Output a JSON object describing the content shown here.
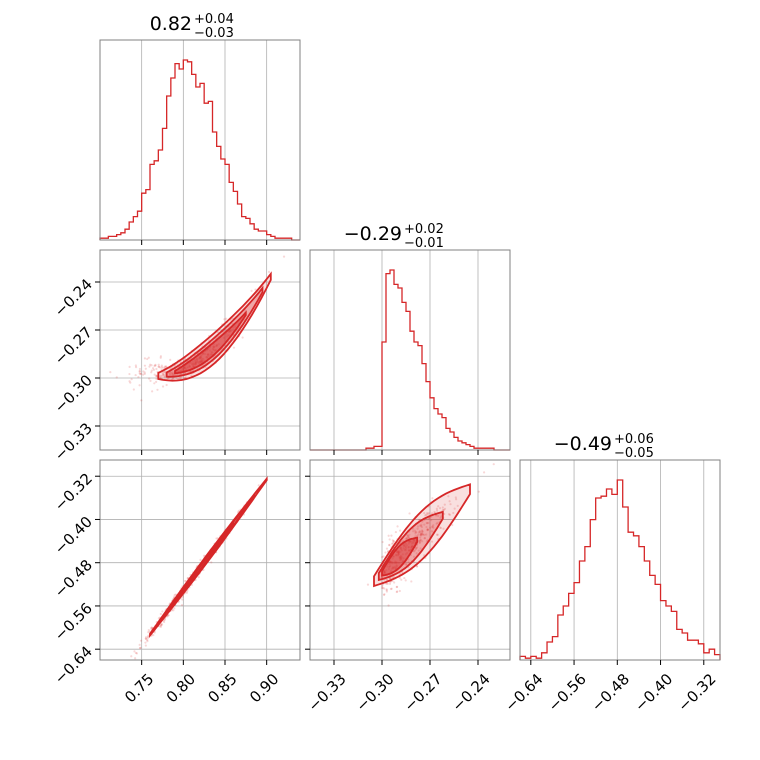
{
  "chart_data": {
    "type": "corner",
    "color": "#d62728",
    "grid": true,
    "parameters": [
      {
        "title_value": "0.82",
        "title_plus": "+0.04",
        "title_minus": "−0.03",
        "range": [
          0.7,
          0.94
        ],
        "ticks": [
          0.75,
          0.8,
          0.85,
          0.9
        ],
        "tick_labels": [
          "0.75",
          "0.80",
          "0.85",
          "0.90"
        ]
      },
      {
        "title_value": "−0.29",
        "title_plus": "+0.02",
        "title_minus": "−0.01",
        "range": [
          -0.345,
          -0.22
        ],
        "ticks": [
          -0.33,
          -0.3,
          -0.27,
          -0.24
        ],
        "tick_labels": [
          "−0.33",
          "−0.30",
          "−0.27",
          "−0.24"
        ]
      },
      {
        "title_value": "−0.49",
        "title_plus": "+0.06",
        "title_minus": "−0.05",
        "range": [
          -0.66,
          -0.29
        ],
        "ticks": [
          -0.64,
          -0.56,
          -0.48,
          -0.4,
          -0.32
        ],
        "tick_labels": [
          "−0.64",
          "−0.56",
          "−0.48",
          "−0.40",
          "−0.32"
        ]
      }
    ],
    "histograms": [
      {
        "bins": [
          0.7,
          0.705,
          0.71,
          0.715,
          0.72,
          0.725,
          0.73,
          0.735,
          0.74,
          0.745,
          0.75,
          0.755,
          0.76,
          0.765,
          0.77,
          0.775,
          0.78,
          0.785,
          0.79,
          0.795,
          0.8,
          0.805,
          0.81,
          0.815,
          0.82,
          0.825,
          0.83,
          0.835,
          0.84,
          0.845,
          0.85,
          0.855,
          0.86,
          0.865,
          0.87,
          0.875,
          0.88,
          0.885,
          0.89,
          0.895,
          0.9,
          0.905,
          0.91,
          0.915,
          0.92,
          0.925,
          0.93,
          0.935,
          0.94
        ],
        "counts": [
          1,
          1,
          2,
          2,
          3,
          4,
          6,
          10,
          13,
          16,
          26,
          28,
          42,
          44,
          50,
          62,
          80,
          90,
          98,
          95,
          100,
          99,
          92,
          85,
          87,
          76,
          77,
          60,
          52,
          45,
          42,
          32,
          27,
          20,
          13,
          12,
          9,
          6,
          5,
          5,
          3,
          2,
          1,
          1,
          1,
          1,
          0,
          0
        ]
      },
      {
        "bins": [
          -0.345,
          -0.3425,
          -0.34,
          -0.3375,
          -0.335,
          -0.3325,
          -0.33,
          -0.3275,
          -0.325,
          -0.3225,
          -0.32,
          -0.3175,
          -0.315,
          -0.3125,
          -0.31,
          -0.3075,
          -0.305,
          -0.3025,
          -0.3,
          -0.2975,
          -0.295,
          -0.2925,
          -0.29,
          -0.2875,
          -0.285,
          -0.2825,
          -0.28,
          -0.2775,
          -0.275,
          -0.2725,
          -0.27,
          -0.2675,
          -0.265,
          -0.2625,
          -0.26,
          -0.2575,
          -0.255,
          -0.2525,
          -0.25,
          -0.2475,
          -0.245,
          -0.2425,
          -0.24,
          -0.2375,
          -0.235,
          -0.2325,
          -0.23,
          -0.2275,
          -0.225,
          -0.2225,
          -0.22
        ],
        "counts": [
          0,
          0,
          0,
          0,
          0,
          0,
          0,
          0,
          0,
          0,
          0,
          0,
          0,
          0,
          1,
          1,
          2,
          2,
          60,
          98,
          100,
          92,
          90,
          82,
          77,
          66,
          60,
          58,
          48,
          38,
          29,
          23,
          20,
          18,
          12,
          10,
          7,
          5,
          4,
          3,
          2,
          1,
          1,
          1,
          1,
          1,
          0,
          0,
          0,
          0
        ]
      },
      {
        "bins": [
          -0.66,
          -0.65,
          -0.64,
          -0.63,
          -0.62,
          -0.61,
          -0.6,
          -0.59,
          -0.58,
          -0.57,
          -0.56,
          -0.55,
          -0.54,
          -0.53,
          -0.52,
          -0.51,
          -0.5,
          -0.49,
          -0.48,
          -0.47,
          -0.46,
          -0.45,
          -0.44,
          -0.43,
          -0.42,
          -0.41,
          -0.4,
          -0.39,
          -0.38,
          -0.37,
          -0.36,
          -0.35,
          -0.34,
          -0.33,
          -0.32,
          -0.31,
          -0.3,
          -0.29
        ],
        "counts": [
          2,
          1,
          2,
          1,
          4,
          10,
          13,
          25,
          30,
          37,
          43,
          55,
          63,
          78,
          90,
          91,
          95,
          92,
          100,
          85,
          71,
          69,
          63,
          55,
          47,
          42,
          33,
          30,
          27,
          17,
          15,
          11,
          11,
          9,
          4,
          6,
          3
        ]
      }
    ],
    "pairs": [
      {
        "x_param": 0,
        "y_param": 1
      },
      {
        "x_param": 0,
        "y_param": 2
      },
      {
        "x_param": 1,
        "y_param": 2
      }
    ]
  }
}
